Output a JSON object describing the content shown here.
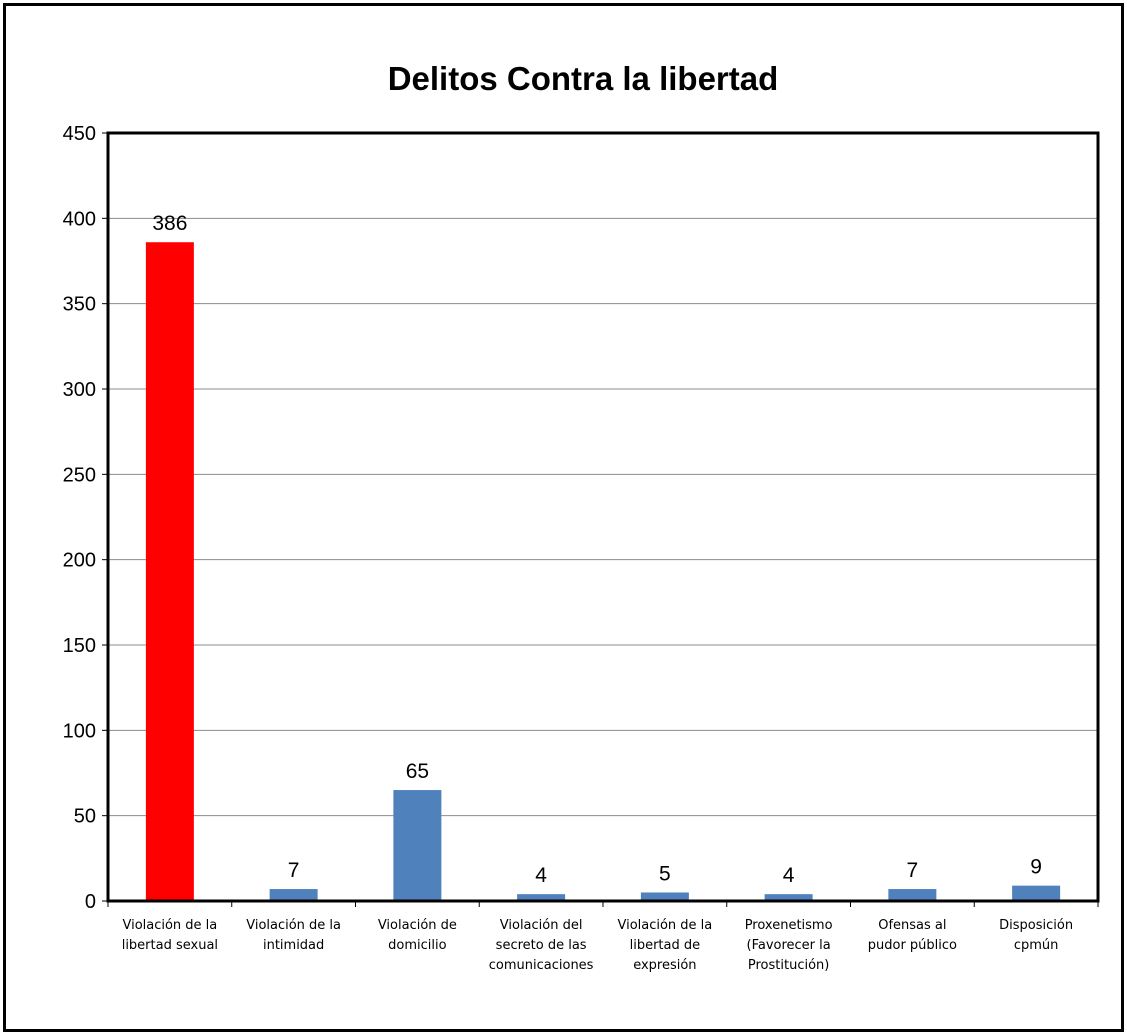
{
  "chart_data": {
    "type": "bar",
    "title": "Delitos Contra la libertad",
    "xlabel": "",
    "ylabel": "",
    "ylim": [
      0,
      450
    ],
    "yticks": [
      0,
      50,
      100,
      150,
      200,
      250,
      300,
      350,
      400,
      450
    ],
    "grid": true,
    "legend": "none",
    "categories": [
      [
        "Violación de la",
        "libertad sexual"
      ],
      [
        "Violación de la",
        "intimidad"
      ],
      [
        "Violación de",
        "domicilio"
      ],
      [
        "Violación del",
        "secreto de las",
        "comunicaciones"
      ],
      [
        "Violación de la",
        "libertad de",
        "expresión"
      ],
      [
        "Proxenetismo",
        "(Favorecer la",
        "Prostitución)"
      ],
      [
        "Ofensas al",
        "pudor público"
      ],
      [
        "Disposición",
        "cpmún"
      ]
    ],
    "values": [
      386,
      7,
      65,
      4,
      5,
      4,
      7,
      9
    ],
    "colors": [
      "#ff0000",
      "#4f81bd",
      "#4f81bd",
      "#4f81bd",
      "#4f81bd",
      "#4f81bd",
      "#4f81bd",
      "#4f81bd"
    ]
  }
}
